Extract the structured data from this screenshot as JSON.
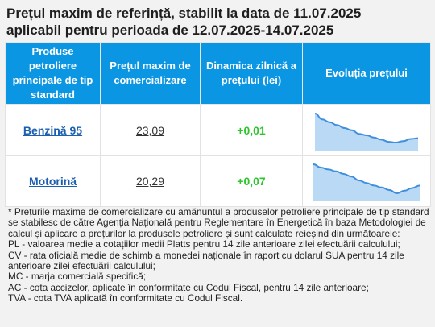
{
  "title": {
    "line1": "Prețul maxim de referință, stabilit la data de 11.07.2025",
    "line2": "aplicabil pentru perioada de 12.07.2025-14.07.2025"
  },
  "table": {
    "headers": [
      "Produse petroliere principale de tip standard",
      "Prețul maxim de comercializare",
      "Dinamica zilnică a prețului (lei)",
      "Evoluția prețului"
    ],
    "rows": [
      {
        "product": "Benzină 95",
        "price": "23,09",
        "dynamics": "+0,01",
        "sparkline": [
          23.4,
          23.32,
          23.28,
          23.24,
          23.2,
          23.17,
          23.12,
          23.1,
          23.07,
          23.04,
          23.01,
          23.0,
          23.02,
          23.05,
          23.06
        ]
      },
      {
        "product": "Motorină",
        "price": "20,29",
        "dynamics": "+0,07",
        "sparkline": [
          20.55,
          20.5,
          20.47,
          20.44,
          20.4,
          20.36,
          20.3,
          20.26,
          20.22,
          20.19,
          20.15,
          20.1,
          20.14,
          20.18,
          20.22
        ]
      }
    ]
  },
  "colors": {
    "header_bg": "#0b96e3",
    "link": "#1b5fae",
    "positive": "#2cc52c",
    "spark_line": "#3f8fde",
    "spark_fill": "#b9d9f5"
  },
  "notes": [
    "* Prețurile maxime de comercializare cu amănuntul a produselor petroliere principale de tip standard se stabilesc de către Agenția Națională pentru Reglementare în Energetică în baza Metodologiei de calcul și aplicare a prețurilor la produsele petroliere și sunt calculate reieșind din următoarele:",
    "PL - valoarea medie a cotațiilor medii Platts pentru 14 zile anterioare zilei efectuării calculului;",
    "CV - rata oficială medie de schimb a monedei naționale în raport cu dolarul SUA pentru 14 zile anterioare zilei efectuării calculului;",
    "MC - marja comercială specifică;",
    "AC - cota accizelor, aplicate în conformitate cu Codul Fiscal, pentru 14 zile anterioare;",
    "TVA - cota TVA aplicată în conformitate cu Codul Fiscal."
  ]
}
